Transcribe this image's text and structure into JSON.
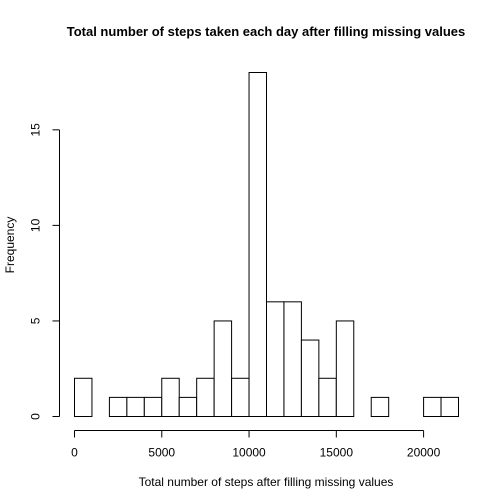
{
  "chart_data": {
    "type": "bar",
    "subtype": "histogram",
    "title": "Total number of steps taken each day after filling missing values",
    "xlabel": "Total number of steps after filling missing values",
    "ylabel": "Frequency",
    "bin_width": 1000,
    "bins": [
      {
        "start": 0,
        "end": 1000,
        "count": 2
      },
      {
        "start": 1000,
        "end": 2000,
        "count": 0
      },
      {
        "start": 2000,
        "end": 3000,
        "count": 1
      },
      {
        "start": 3000,
        "end": 4000,
        "count": 1
      },
      {
        "start": 4000,
        "end": 5000,
        "count": 1
      },
      {
        "start": 5000,
        "end": 6000,
        "count": 2
      },
      {
        "start": 6000,
        "end": 7000,
        "count": 1
      },
      {
        "start": 7000,
        "end": 8000,
        "count": 2
      },
      {
        "start": 8000,
        "end": 9000,
        "count": 5
      },
      {
        "start": 9000,
        "end": 10000,
        "count": 2
      },
      {
        "start": 10000,
        "end": 11000,
        "count": 18
      },
      {
        "start": 11000,
        "end": 12000,
        "count": 6
      },
      {
        "start": 12000,
        "end": 13000,
        "count": 6
      },
      {
        "start": 13000,
        "end": 14000,
        "count": 4
      },
      {
        "start": 14000,
        "end": 15000,
        "count": 2
      },
      {
        "start": 15000,
        "end": 16000,
        "count": 5
      },
      {
        "start": 16000,
        "end": 17000,
        "count": 0
      },
      {
        "start": 17000,
        "end": 18000,
        "count": 1
      },
      {
        "start": 18000,
        "end": 19000,
        "count": 0
      },
      {
        "start": 19000,
        "end": 20000,
        "count": 0
      },
      {
        "start": 20000,
        "end": 21000,
        "count": 1
      },
      {
        "start": 21000,
        "end": 22000,
        "count": 1
      }
    ],
    "xlim": [
      0,
      22000
    ],
    "ylim": [
      0,
      18
    ],
    "x_ticks": [
      0,
      5000,
      10000,
      15000,
      20000
    ],
    "y_ticks": [
      0,
      5,
      10,
      15
    ],
    "bar_fill": "#ffffff",
    "bar_stroke": "#000000",
    "grid": false,
    "legend": "none"
  }
}
